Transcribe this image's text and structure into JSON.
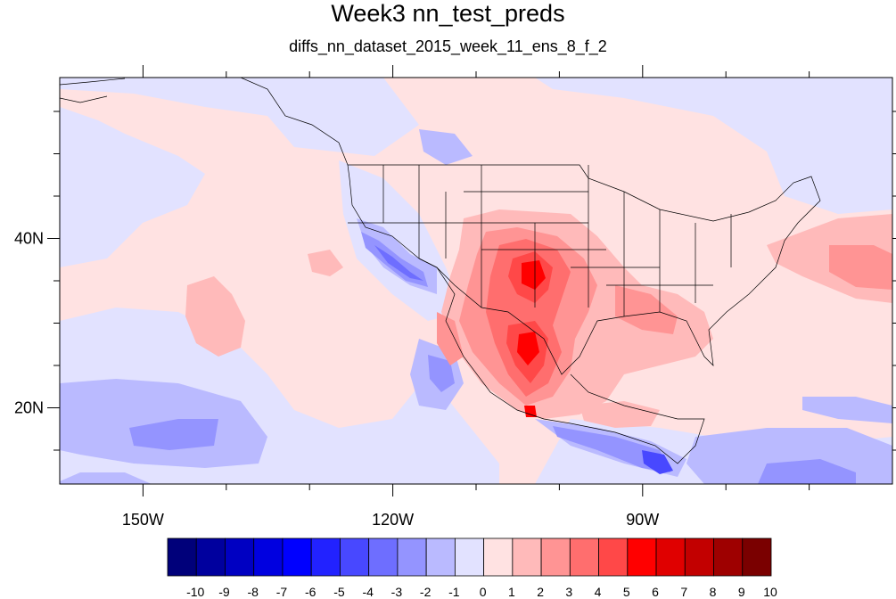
{
  "title": "Week3 nn_test_preds",
  "subtitle": "diffs_nn_dataset_2015_week_11_ens_8_f_2",
  "map": {
    "lon_range": [
      -160,
      -60
    ],
    "lat_range": [
      11,
      59
    ],
    "x_ticks": [
      {
        "lon": -150,
        "label": "150W"
      },
      {
        "lon": -120,
        "label": "120W"
      },
      {
        "lon": -90,
        "label": "90W"
      }
    ],
    "y_ticks": [
      {
        "lat": 20,
        "label": "20N"
      },
      {
        "lat": 40,
        "label": "40N"
      }
    ]
  },
  "colorbar": {
    "labels": [
      "-10",
      "-9",
      "-8",
      "-7",
      "-6",
      "-5",
      "-4",
      "-3",
      "-2",
      "-1",
      "0",
      "1",
      "2",
      "3",
      "4",
      "5",
      "6",
      "7",
      "8",
      "9",
      "10"
    ],
    "colors": [
      "#00007a",
      "#00009e",
      "#0000c2",
      "#0000e0",
      "#0000ff",
      "#2222ff",
      "#4848ff",
      "#6e6eff",
      "#9494ff",
      "#babaff",
      "#e2e2ff",
      "#ffe2e2",
      "#ffbaba",
      "#ff9494",
      "#ff6e6e",
      "#ff4848",
      "#ff0000",
      "#e00000",
      "#c20000",
      "#9e0000",
      "#7a0000"
    ]
  }
}
